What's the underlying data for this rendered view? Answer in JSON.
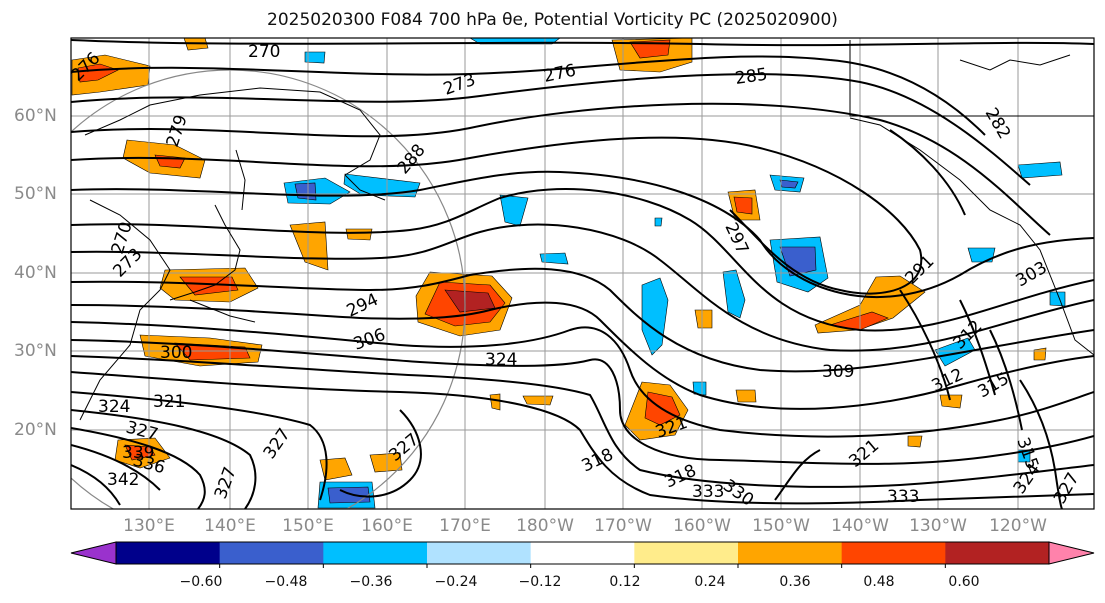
{
  "title": "2025020300 F084 700 hPa θe, Potential Vorticity PC (2025020900)",
  "lat_labels": [
    "60°N",
    "50°N",
    "40°N",
    "30°N",
    "20°N"
  ],
  "lon_labels": [
    "130°E",
    "140°E",
    "150°E",
    "160°E",
    "170°E",
    "180°W",
    "170°W",
    "160°W",
    "150°W",
    "140°W",
    "130°W",
    "120°W"
  ],
  "contour_labels": [
    "276",
    "270",
    "273",
    "276",
    "285",
    "279",
    "288",
    "282",
    "270",
    "273",
    "294",
    "297",
    "291",
    "303",
    "300",
    "306",
    "324",
    "309",
    "312",
    "312",
    "315",
    "324",
    "321",
    "327",
    "327",
    "327",
    "327",
    "321",
    "318",
    "318",
    "333",
    "330",
    "321",
    "333",
    "315",
    "324",
    "327",
    "339",
    "336",
    "342"
  ],
  "colorbar": {
    "tick_labels": [
      "−0.60",
      "−0.48",
      "−0.36",
      "−0.24",
      "−0.12",
      "0.12",
      "0.24",
      "0.36",
      "0.48",
      "0.60"
    ],
    "colors": [
      "#9a32cd",
      "#00008b",
      "#3a5fcd",
      "#00bfff",
      "#b0e2ff",
      "#ffffff",
      "#ffec8b",
      "#ffa500",
      "#ff4500",
      "#b22222",
      "#ff82ab"
    ]
  }
}
